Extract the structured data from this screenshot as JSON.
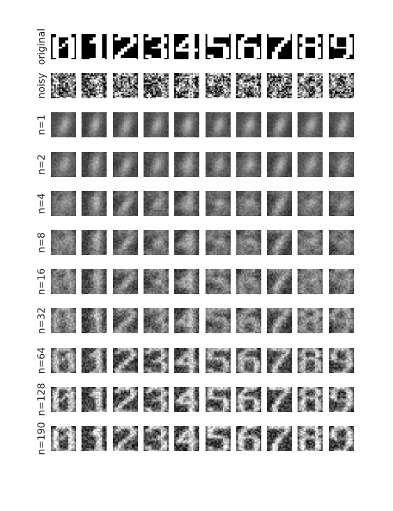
{
  "figure": {
    "rows": [
      {
        "label": "original",
        "kind": "original"
      },
      {
        "label": "noisy",
        "kind": "noisy"
      },
      {
        "label": "n=1",
        "kind": "recon",
        "n": 1
      },
      {
        "label": "n=2",
        "kind": "recon",
        "n": 2
      },
      {
        "label": "n=4",
        "kind": "recon",
        "n": 4
      },
      {
        "label": "n=8",
        "kind": "recon",
        "n": 8
      },
      {
        "label": "n=16",
        "kind": "recon",
        "n": 16
      },
      {
        "label": "n=32",
        "kind": "recon",
        "n": 32
      },
      {
        "label": "n=64",
        "kind": "recon",
        "n": 64
      },
      {
        "label": "n=128",
        "kind": "recon",
        "n": 128
      },
      {
        "label": "n=190",
        "kind": "recon",
        "n": 190
      }
    ],
    "digits": [
      0,
      1,
      2,
      3,
      4,
      5,
      6,
      7,
      8,
      9
    ],
    "colormap": "gray"
  }
}
